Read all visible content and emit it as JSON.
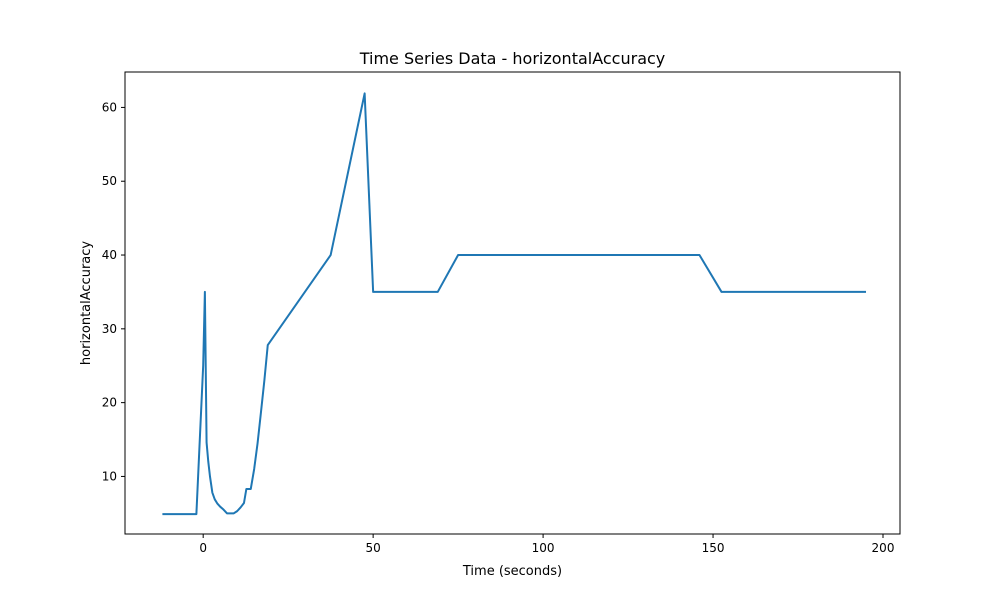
{
  "chart_data": {
    "type": "line",
    "title": "Time Series Data - horizontalAccuracy",
    "xlabel": "Time (seconds)",
    "ylabel": "horizontalAccuracy",
    "xlim": [
      -23,
      205
    ],
    "ylim": [
      2.2,
      64.8
    ],
    "xticks": [
      0,
      50,
      100,
      150,
      200
    ],
    "yticks": [
      10,
      20,
      30,
      40,
      50,
      60
    ],
    "grid": false,
    "legend": "none",
    "line_color": "#1f77b4",
    "series": [
      {
        "x": [
          -12,
          -2,
          0,
          0.5,
          1,
          1.5,
          2,
          2.7,
          3.4,
          4.2,
          5,
          6,
          7,
          8,
          9,
          10,
          11,
          12,
          12.7,
          13.3,
          14,
          15,
          16,
          17,
          18,
          19,
          37.5,
          47.5,
          50,
          69,
          75,
          146,
          152.5,
          195
        ],
        "y": [
          4.9,
          4.9,
          25,
          35,
          14.6,
          12,
          10,
          7.8,
          6.9,
          6.3,
          5.9,
          5.5,
          5.0,
          5.0,
          5.0,
          5.3,
          5.8,
          6.4,
          8.3,
          8.3,
          8.3,
          11,
          14.5,
          18.7,
          23,
          27.8,
          40,
          61.9,
          35,
          35,
          40,
          40,
          35,
          35
        ]
      }
    ]
  }
}
